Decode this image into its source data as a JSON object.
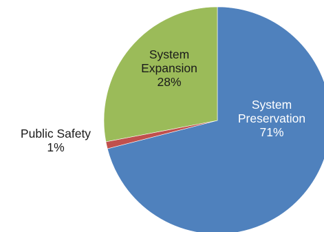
{
  "chart_data": {
    "type": "pie",
    "title": "",
    "slices": [
      {
        "label_lines": [
          "System",
          "Preservation"
        ],
        "value": 71,
        "value_label": "71%",
        "color": "#4F81BD",
        "label_color": "#ffffff",
        "label_position": "inside"
      },
      {
        "label_lines": [
          "Public Safety"
        ],
        "value": 1,
        "value_label": "1%",
        "color": "#C0504D",
        "label_color": "#1a1a1a",
        "label_position": "outside"
      },
      {
        "label_lines": [
          "System",
          "Expansion"
        ],
        "value": 28,
        "value_label": "28%",
        "color": "#9BBB59",
        "label_color": "#1a1a1a",
        "label_position": "inside"
      }
    ],
    "start_angle_deg": 0,
    "direction": "clockwise",
    "legend": "none"
  }
}
